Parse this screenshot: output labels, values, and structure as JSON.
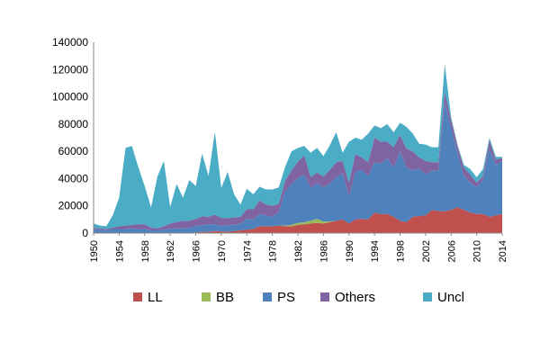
{
  "chart_data": {
    "type": "area",
    "stacked": true,
    "title": "",
    "xlabel": "",
    "ylabel": "",
    "ylim": [
      0,
      140000
    ],
    "yticks": [
      0,
      20000,
      40000,
      60000,
      80000,
      100000,
      120000,
      140000
    ],
    "xlim": [
      1950,
      2014
    ],
    "xticks": [
      1950,
      1954,
      1958,
      1962,
      1966,
      1970,
      1974,
      1978,
      1982,
      1986,
      1990,
      1994,
      1998,
      2002,
      2006,
      2010,
      2014
    ],
    "grid": false,
    "legend": "bottom",
    "x": [
      1950,
      1951,
      1952,
      1953,
      1954,
      1955,
      1956,
      1957,
      1958,
      1959,
      1960,
      1961,
      1962,
      1963,
      1964,
      1965,
      1966,
      1967,
      1968,
      1969,
      1970,
      1971,
      1972,
      1973,
      1974,
      1975,
      1976,
      1977,
      1978,
      1979,
      1980,
      1981,
      1982,
      1983,
      1984,
      1985,
      1986,
      1987,
      1988,
      1989,
      1990,
      1991,
      1992,
      1993,
      1994,
      1995,
      1996,
      1997,
      1998,
      1999,
      2000,
      2001,
      2002,
      2003,
      2004,
      2005,
      2006,
      2007,
      2008,
      2009,
      2010,
      2011,
      2012,
      2013,
      2014
    ],
    "series": [
      {
        "name": "LL",
        "color": "#C0504D",
        "values": [
          0,
          0,
          0,
          0,
          0,
          0,
          0,
          0,
          0,
          0,
          0,
          0,
          0,
          0,
          0,
          0,
          500,
          800,
          1000,
          1500,
          1200,
          1000,
          1500,
          2000,
          2500,
          3000,
          5000,
          5000,
          5000,
          5500,
          5000,
          5000,
          6000,
          6500,
          7000,
          7500,
          7000,
          8000,
          9000,
          10000,
          7000,
          10000,
          10500,
          10000,
          15000,
          14000,
          14000,
          12000,
          9000,
          8000,
          12000,
          12500,
          13000,
          17000,
          16000,
          16000,
          17000,
          19000,
          17000,
          15000,
          14000,
          14000,
          12000,
          13000,
          14000
        ]
      },
      {
        "name": "BB",
        "color": "#9BBB59",
        "values": [
          0,
          0,
          0,
          0,
          0,
          0,
          0,
          0,
          0,
          0,
          0,
          0,
          0,
          0,
          0,
          0,
          0,
          0,
          0,
          0,
          0,
          0,
          0,
          0,
          0,
          0,
          0,
          0,
          0,
          0,
          500,
          1000,
          1500,
          1500,
          2000,
          3000,
          1500,
          500,
          0,
          0,
          0,
          0,
          0,
          0,
          0,
          0,
          0,
          0,
          0,
          0,
          0,
          0,
          0,
          0,
          0,
          0,
          0,
          0,
          0,
          0,
          0,
          0,
          0,
          0,
          0
        ]
      },
      {
        "name": "PS",
        "color": "#4F81BD",
        "values": [
          3000,
          2500,
          2000,
          3000,
          3000,
          3000,
          3500,
          3000,
          3000,
          2000,
          2000,
          2500,
          3000,
          3500,
          3500,
          4000,
          4500,
          5000,
          5500,
          5000,
          4000,
          5000,
          4500,
          5000,
          8000,
          7000,
          9000,
          8000,
          7000,
          10000,
          25000,
          30000,
          33000,
          35000,
          24000,
          26000,
          25000,
          28000,
          32000,
          34000,
          20000,
          35000,
          36000,
          32000,
          37000,
          37000,
          41000,
          36000,
          51000,
          40000,
          34000,
          35000,
          30000,
          29000,
          30000,
          80000,
          60000,
          40000,
          25000,
          22000,
          20000,
          25000,
          50000,
          37000,
          39000
        ]
      },
      {
        "name": "Others",
        "color": "#8064A2",
        "values": [
          1000,
          1000,
          1000,
          1000,
          2000,
          2500,
          2500,
          3500,
          3500,
          2000,
          1500,
          2500,
          4000,
          4500,
          5500,
          5000,
          5500,
          6500,
          5500,
          7000,
          6000,
          5000,
          5500,
          5000,
          7000,
          7500,
          10000,
          8000,
          8000,
          6000,
          8000,
          10000,
          12000,
          14000,
          8000,
          8000,
          8000,
          10000,
          11000,
          9000,
          10000,
          13000,
          9000,
          10000,
          18000,
          16000,
          12000,
          15000,
          12000,
          14000,
          14000,
          8000,
          10000,
          6000,
          6000,
          8000,
          6000,
          5000,
          6000,
          6000,
          3000,
          3000,
          6000,
          4000,
          2000
        ]
      },
      {
        "name": "Uncl",
        "color": "#4BACC6",
        "values": [
          3000,
          2000,
          2000,
          9000,
          21000,
          57000,
          58000,
          42000,
          28000,
          15000,
          38000,
          48000,
          12000,
          28000,
          17000,
          30000,
          24000,
          46000,
          30000,
          61000,
          22000,
          34000,
          17000,
          9000,
          15000,
          11000,
          10000,
          11000,
          12000,
          12000,
          10000,
          14000,
          10000,
          7000,
          18000,
          18000,
          15000,
          18000,
          22000,
          6000,
          30000,
          12000,
          13000,
          21000,
          9000,
          10000,
          13000,
          11000,
          9000,
          16000,
          13000,
          10000,
          12000,
          11000,
          11000,
          20000,
          2000,
          1000,
          2000,
          4000,
          4000,
          5000,
          2000,
          2000,
          1000
        ]
      }
    ]
  }
}
